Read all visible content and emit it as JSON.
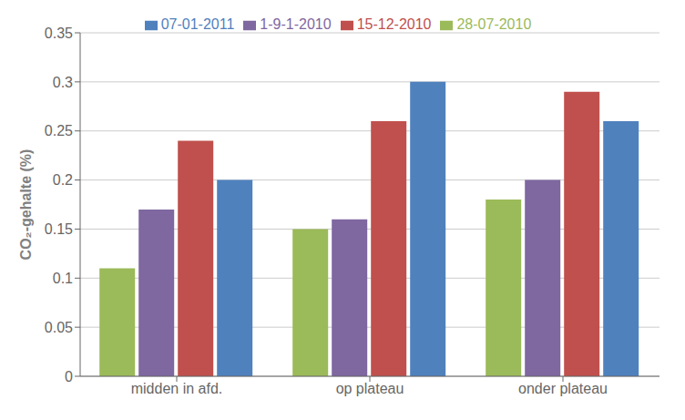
{
  "chart_data": {
    "type": "bar",
    "categories": [
      "midden in afd.",
      "op plateau",
      "onder plateau"
    ],
    "series": [
      {
        "name": "28-07-2010",
        "color": "#9bba59",
        "values": [
          0.11,
          0.15,
          0.18
        ]
      },
      {
        "name": "1-9-1-2010",
        "color": "#7f67a0",
        "values": [
          0.17,
          0.16,
          0.2
        ]
      },
      {
        "name": "15-12-2010",
        "color": "#c0504d",
        "values": [
          0.24,
          0.26,
          0.29
        ]
      },
      {
        "name": "07-01-2011",
        "color": "#4f81bd",
        "values": [
          0.2,
          0.3,
          0.26
        ]
      }
    ],
    "y_label": "CO₂-gehalte  (%)",
    "ylim": [
      0,
      0.35
    ],
    "yticks": [
      0,
      0.05,
      0.1,
      0.15,
      0.2,
      0.25,
      0.3,
      0.35
    ],
    "grid": true,
    "legend": "top"
  }
}
